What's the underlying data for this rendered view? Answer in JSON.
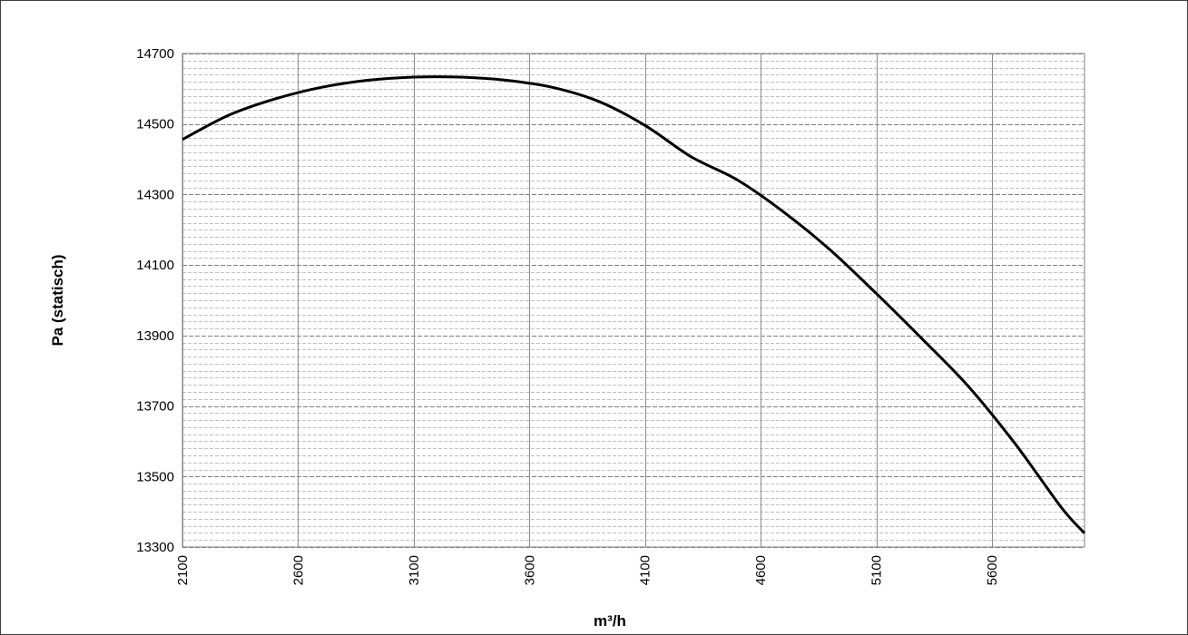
{
  "chart_data": {
    "type": "line",
    "title": "",
    "xlabel": "m³/h",
    "ylabel": "Pa (statisch)",
    "xlim": [
      2100,
      6000
    ],
    "ylim": [
      13300,
      14700
    ],
    "x_ticks": [
      2100,
      2600,
      3100,
      3600,
      4100,
      4600,
      5100,
      5600
    ],
    "y_ticks": [
      13300,
      13500,
      13700,
      13900,
      14100,
      14300,
      14500,
      14700
    ],
    "y_minor_step": 20,
    "grid": true,
    "legend": "none",
    "line_color": "#000000",
    "series": [
      {
        "x": [
          2100,
          2300,
          2500,
          2700,
          2900,
          3100,
          3300,
          3500,
          3700,
          3900,
          4100,
          4300,
          4500,
          4700,
          4900,
          5100,
          5300,
          5500,
          5700,
          5900,
          6000
        ],
        "y": [
          14456,
          14525,
          14571,
          14604,
          14624,
          14633,
          14633,
          14624,
          14604,
          14564,
          14496,
          14407,
          14341,
          14250,
          14143,
          14019,
          13889,
          13754,
          13593,
          13412,
          13339
        ]
      }
    ]
  }
}
